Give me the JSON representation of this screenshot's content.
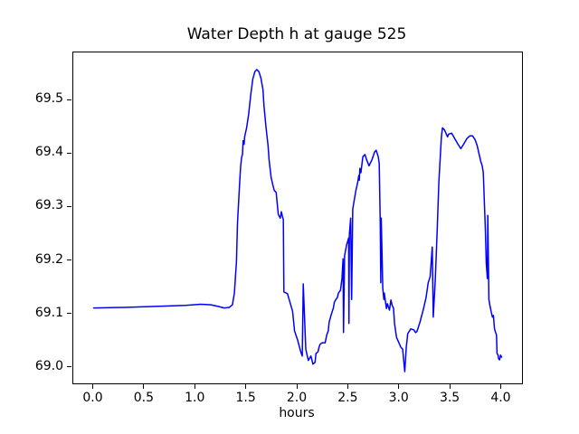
{
  "chart_data": {
    "type": "line",
    "title": "Water Depth h at gauge 525",
    "xlabel": "hours",
    "ylabel": "",
    "grid": false,
    "legend": "none",
    "line_color": "#0000ff",
    "xlim": [
      -0.2,
      4.2
    ],
    "ylim": [
      68.971,
      69.59
    ],
    "x_ticks": [
      0.0,
      0.5,
      1.0,
      1.5,
      2.0,
      2.5,
      3.0,
      3.5,
      4.0
    ],
    "x_tick_labels": [
      "0.0",
      "0.5",
      "1.0",
      "1.5",
      "2.0",
      "2.5",
      "3.0",
      "3.5",
      "4.0"
    ],
    "y_ticks": [
      69.0,
      69.1,
      69.2,
      69.3,
      69.4,
      69.5
    ],
    "y_tick_labels": [
      "69.0",
      "69.1",
      "69.2",
      "69.3",
      "69.4",
      "69.5"
    ],
    "series": [
      {
        "name": "h",
        "points": [
          [
            0.0,
            69.112
          ],
          [
            0.3,
            69.113
          ],
          [
            0.6,
            69.115
          ],
          [
            0.9,
            69.117
          ],
          [
            1.05,
            69.119
          ],
          [
            1.15,
            69.118
          ],
          [
            1.22,
            69.115
          ],
          [
            1.28,
            69.112
          ],
          [
            1.33,
            69.113
          ],
          [
            1.36,
            69.118
          ],
          [
            1.38,
            69.14
          ],
          [
            1.4,
            69.2
          ],
          [
            1.41,
            69.27
          ],
          [
            1.43,
            69.34
          ],
          [
            1.44,
            69.375
          ],
          [
            1.45,
            69.393
          ],
          [
            1.46,
            69.4
          ],
          [
            1.465,
            69.425
          ],
          [
            1.475,
            69.418
          ],
          [
            1.48,
            69.432
          ],
          [
            1.5,
            69.449
          ],
          [
            1.52,
            69.475
          ],
          [
            1.54,
            69.51
          ],
          [
            1.56,
            69.54
          ],
          [
            1.58,
            69.554
          ],
          [
            1.6,
            69.558
          ],
          [
            1.62,
            69.554
          ],
          [
            1.64,
            69.542
          ],
          [
            1.66,
            69.52
          ],
          [
            1.67,
            69.49
          ],
          [
            1.69,
            69.449
          ],
          [
            1.71,
            69.416
          ],
          [
            1.72,
            69.39
          ],
          [
            1.74,
            69.356
          ],
          [
            1.76,
            69.34
          ],
          [
            1.77,
            69.332
          ],
          [
            1.79,
            69.328
          ],
          [
            1.8,
            69.306
          ],
          [
            1.81,
            69.287
          ],
          [
            1.83,
            69.28
          ],
          [
            1.84,
            69.292
          ],
          [
            1.85,
            69.284
          ],
          [
            1.86,
            69.277
          ],
          [
            1.865,
            69.142
          ],
          [
            1.9,
            69.139
          ],
          [
            1.91,
            69.132
          ],
          [
            1.95,
            69.106
          ],
          [
            1.97,
            69.069
          ],
          [
            2.0,
            69.052
          ],
          [
            2.03,
            69.03
          ],
          [
            2.045,
            69.022
          ],
          [
            2.055,
            69.157
          ],
          [
            2.08,
            69.035
          ],
          [
            2.105,
            69.014
          ],
          [
            2.13,
            69.022
          ],
          [
            2.15,
            69.007
          ],
          [
            2.17,
            69.01
          ],
          [
            2.18,
            69.027
          ],
          [
            2.2,
            69.03
          ],
          [
            2.21,
            69.039
          ],
          [
            2.22,
            69.044
          ],
          [
            2.24,
            69.047
          ],
          [
            2.27,
            69.047
          ],
          [
            2.285,
            69.061
          ],
          [
            2.3,
            69.069
          ],
          [
            2.31,
            69.086
          ],
          [
            2.33,
            69.1
          ],
          [
            2.35,
            69.112
          ],
          [
            2.36,
            69.123
          ],
          [
            2.375,
            69.128
          ],
          [
            2.39,
            69.132
          ],
          [
            2.4,
            69.14
          ],
          [
            2.42,
            69.145
          ],
          [
            2.435,
            69.167
          ],
          [
            2.445,
            69.204
          ],
          [
            2.45,
            69.066
          ],
          [
            2.46,
            69.21
          ],
          [
            2.48,
            69.23
          ],
          [
            2.5,
            69.243
          ],
          [
            2.503,
            69.083
          ],
          [
            2.507,
            69.25
          ],
          [
            2.52,
            69.28
          ],
          [
            2.53,
            69.128
          ],
          [
            2.54,
            69.297
          ],
          [
            2.57,
            69.331
          ],
          [
            2.59,
            69.348
          ],
          [
            2.6,
            69.36
          ],
          [
            2.605,
            69.351
          ],
          [
            2.61,
            69.373
          ],
          [
            2.62,
            69.365
          ],
          [
            2.64,
            69.395
          ],
          [
            2.66,
            69.399
          ],
          [
            2.675,
            69.39
          ],
          [
            2.7,
            69.378
          ],
          [
            2.73,
            69.39
          ],
          [
            2.755,
            69.404
          ],
          [
            2.77,
            69.407
          ],
          [
            2.79,
            69.395
          ],
          [
            2.8,
            69.382
          ],
          [
            2.81,
            69.272
          ],
          [
            2.815,
            69.159
          ],
          [
            2.82,
            69.28
          ],
          [
            2.835,
            69.149
          ],
          [
            2.845,
            69.128
          ],
          [
            2.85,
            69.14
          ],
          [
            2.87,
            69.111
          ],
          [
            2.88,
            69.12
          ],
          [
            2.9,
            69.108
          ],
          [
            2.915,
            69.127
          ],
          [
            2.925,
            69.118
          ],
          [
            2.94,
            69.111
          ],
          [
            2.95,
            69.083
          ],
          [
            2.97,
            69.057
          ],
          [
            3.0,
            69.044
          ],
          [
            3.01,
            69.039
          ],
          [
            3.03,
            69.035
          ],
          [
            3.05,
            68.993
          ],
          [
            3.065,
            69.039
          ],
          [
            3.08,
            69.064
          ],
          [
            3.11,
            69.073
          ],
          [
            3.14,
            69.071
          ],
          [
            3.155,
            69.066
          ],
          [
            3.17,
            69.068
          ],
          [
            3.2,
            69.086
          ],
          [
            3.22,
            69.1
          ],
          [
            3.235,
            69.111
          ],
          [
            3.26,
            69.132
          ],
          [
            3.28,
            69.159
          ],
          [
            3.3,
            69.171
          ],
          [
            3.32,
            69.226
          ],
          [
            3.33,
            69.095
          ],
          [
            3.35,
            69.167
          ],
          [
            3.37,
            69.264
          ],
          [
            3.385,
            69.348
          ],
          [
            3.4,
            69.399
          ],
          [
            3.41,
            69.432
          ],
          [
            3.42,
            69.449
          ],
          [
            3.44,
            69.445
          ],
          [
            3.47,
            69.432
          ],
          [
            3.48,
            69.437
          ],
          [
            3.51,
            69.439
          ],
          [
            3.54,
            69.429
          ],
          [
            3.57,
            69.419
          ],
          [
            3.6,
            69.41
          ],
          [
            3.63,
            69.419
          ],
          [
            3.66,
            69.429
          ],
          [
            3.69,
            69.434
          ],
          [
            3.715,
            69.434
          ],
          [
            3.74,
            69.427
          ],
          [
            3.76,
            69.416
          ],
          [
            3.78,
            69.399
          ],
          [
            3.795,
            69.387
          ],
          [
            3.81,
            69.378
          ],
          [
            3.82,
            69.365
          ],
          [
            3.84,
            69.264
          ],
          [
            3.85,
            69.196
          ],
          [
            3.86,
            69.167
          ],
          [
            3.865,
            69.285
          ],
          [
            3.875,
            69.128
          ],
          [
            3.885,
            69.117
          ],
          [
            3.9,
            69.103
          ],
          [
            3.91,
            69.095
          ],
          [
            3.92,
            69.098
          ],
          [
            3.93,
            69.073
          ],
          [
            3.95,
            69.061
          ],
          [
            3.955,
            69.027
          ],
          [
            3.965,
            69.024
          ],
          [
            3.97,
            69.017
          ],
          [
            3.98,
            69.015
          ],
          [
            3.99,
            69.024
          ],
          [
            4.0,
            69.02
          ]
        ]
      }
    ]
  }
}
